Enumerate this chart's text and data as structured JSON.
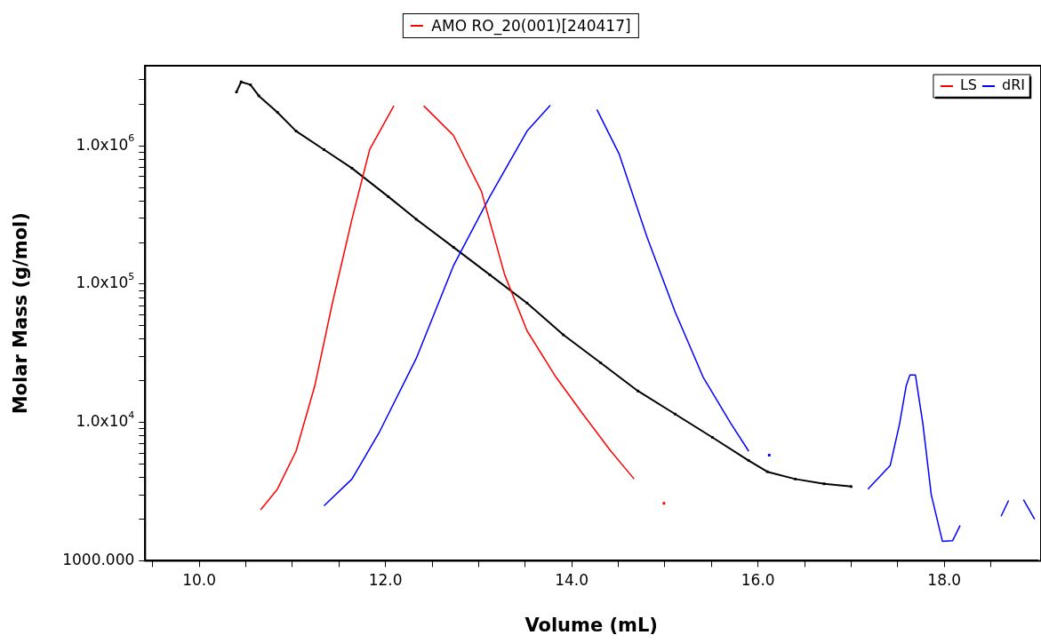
{
  "chart_data": {
    "type": "line",
    "title": "AMO RO_20(001)[240417]",
    "xlabel": "Volume (mL)",
    "ylabel": "Molar Mass (g/mol)",
    "log": true,
    "grid": false,
    "legend": "top right",
    "xlim": [
      9.42,
      19.0
    ],
    "xticks": [
      {
        "value": 9.5,
        "label": null
      },
      {
        "value": 10,
        "label": "10.0"
      },
      {
        "value": 10.5,
        "label": null
      },
      {
        "value": 11,
        "label": null
      },
      {
        "value": 11.5,
        "label": null
      },
      {
        "value": 12,
        "label": "12.0"
      },
      {
        "value": 12.5,
        "label": null
      },
      {
        "value": 13,
        "label": null
      },
      {
        "value": 13.5,
        "label": null
      },
      {
        "value": 14,
        "label": "14.0"
      },
      {
        "value": 14.5,
        "label": null
      },
      {
        "value": 15,
        "label": null
      },
      {
        "value": 15.5,
        "label": null
      },
      {
        "value": 16,
        "label": "16.0"
      },
      {
        "value": 16.5,
        "label": null
      },
      {
        "value": 17,
        "label": null
      },
      {
        "value": 17.5,
        "label": null
      },
      {
        "value": 18,
        "label": "18.0"
      },
      {
        "value": 18.5,
        "label": null
      }
    ],
    "ylim": [
      1000,
      3800000
    ],
    "yticks": [
      {
        "value": 1000,
        "label": "1000.000"
      },
      {
        "value": 2000,
        "label": null
      },
      {
        "value": 3000,
        "label": null
      },
      {
        "value": 4000,
        "label": null
      },
      {
        "value": 5000,
        "label": null
      },
      {
        "value": 6000,
        "label": null
      },
      {
        "value": 7000,
        "label": null
      },
      {
        "value": 8000,
        "label": null
      },
      {
        "value": 9000,
        "label": null
      },
      {
        "value": 10000,
        "label": "1.0x10$^{4}$"
      },
      {
        "value": 20000,
        "label": null
      },
      {
        "value": 30000,
        "label": null
      },
      {
        "value": 40000,
        "label": null
      },
      {
        "value": 50000,
        "label": null
      },
      {
        "value": 60000,
        "label": null
      },
      {
        "value": 70000,
        "label": null
      },
      {
        "value": 80000,
        "label": null
      },
      {
        "value": 90000,
        "label": null
      },
      {
        "value": 100000,
        "label": "1.0x10$^{5}$"
      },
      {
        "value": 200000,
        "label": null
      },
      {
        "value": 300000,
        "label": null
      },
      {
        "value": 400000,
        "label": null
      },
      {
        "value": 500000,
        "label": null
      },
      {
        "value": 600000,
        "label": null
      },
      {
        "value": 700000,
        "label": null
      },
      {
        "value": 800000,
        "label": null
      },
      {
        "value": 900000,
        "label": null
      },
      {
        "value": 1000000,
        "label": "1.0x10$^{6}$"
      },
      {
        "value": 2000000,
        "label": null
      },
      {
        "value": 3000000,
        "label": null
      }
    ],
    "series": [
      {
        "name": "LS",
        "color": "#ff0000",
        "marker": "none",
        "x": [
          10.66,
          10.84,
          11.04,
          11.24,
          11.43,
          11.64,
          11.83,
          12.09,
          12.25,
          12.41,
          12.73,
          13.03,
          13.28,
          13.52,
          13.83,
          14.12,
          14.42,
          14.67,
          14.85,
          14.99
        ],
        "values": [
          2340,
          3300,
          6200,
          18300,
          73000,
          295000,
          940000,
          1950000,
          null,
          1950000,
          1190000,
          470000,
          117000,
          46000,
          21300,
          11500,
          6200,
          3900,
          null,
          2600
        ]
      },
      {
        "name": "dRI",
        "color": "#0000ff",
        "marker": "none",
        "x": [
          11.34,
          11.64,
          11.93,
          12.33,
          12.73,
          13.12,
          13.52,
          13.77,
          14.0,
          14.27,
          14.51,
          14.81,
          15.11,
          15.41,
          15.71,
          15.9,
          16.0,
          16.12,
          16.6,
          17.18,
          17.42,
          17.52,
          17.59,
          17.63,
          17.69,
          17.77,
          17.86,
          17.98,
          18.09,
          18.17,
          18.4,
          18.61,
          18.69,
          18.77,
          18.85,
          18.97
        ],
        "values": [
          2500,
          3900,
          8400,
          29000,
          136000,
          430000,
          1280000,
          1970000,
          null,
          1830000,
          870000,
          217000,
          63000,
          21300,
          9800,
          6200,
          null,
          5800,
          null,
          3300,
          4900,
          9800,
          18300,
          22000,
          22000,
          9800,
          3000,
          1380,
          1400,
          1800,
          null,
          2100,
          2730,
          null,
          2760,
          2000
        ]
      },
      {
        "color": "#000000",
        "marker": "square",
        "x": [
          10.4,
          10.45,
          10.55,
          10.64,
          10.84,
          11.04,
          11.34,
          11.64,
          12.03,
          12.33,
          12.73,
          13.12,
          13.52,
          13.91,
          14.31,
          14.71,
          15.11,
          15.51,
          15.9,
          16.1,
          16.4,
          16.71,
          17.0
        ],
        "values": [
          2450000,
          2900000,
          2770000,
          2300000,
          1750000,
          1280000,
          940000,
          690000,
          430000,
          295000,
          185000,
          117000,
          73000,
          43000,
          27000,
          16900,
          11500,
          7800,
          5300,
          4400,
          3900,
          3600,
          3440
        ]
      }
    ]
  }
}
